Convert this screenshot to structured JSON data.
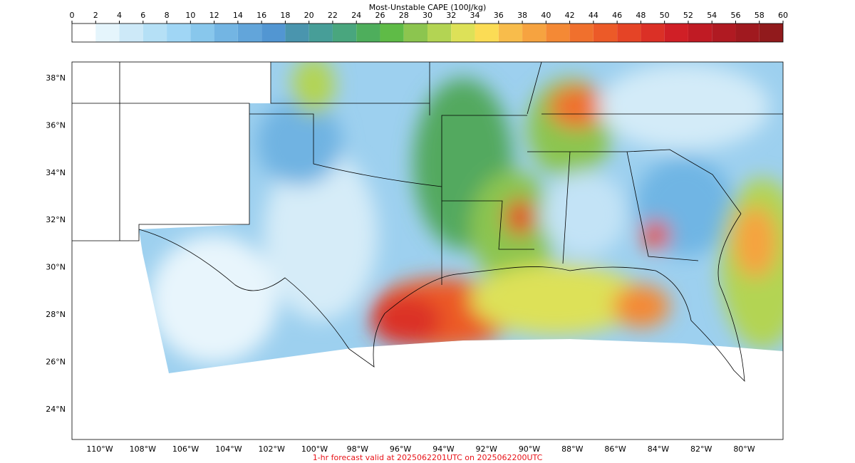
{
  "map": {
    "colorbar": {
      "title": "Most-Unstable CAPE (100J/kg)",
      "levels": [
        0,
        2,
        4,
        6,
        8,
        10,
        12,
        14,
        16,
        18,
        20,
        22,
        24,
        26,
        28,
        30,
        32,
        34,
        36,
        38,
        40,
        42,
        44,
        46,
        48,
        50,
        52,
        54,
        56,
        58,
        60
      ],
      "colors": [
        "#ffffff",
        "#e5f5fc",
        "#cde9f8",
        "#b5e0f6",
        "#a0d6f5",
        "#88c7ec",
        "#73b5e3",
        "#62a5da",
        "#5296d2",
        "#4a95ae",
        "#479e98",
        "#49a67e",
        "#4eae5c",
        "#5fbb47",
        "#8cc54f",
        "#b3d453",
        "#dde158",
        "#fbdc55",
        "#f8bc4b",
        "#f6a340",
        "#f48935",
        "#f0702d",
        "#ec5a28",
        "#e54426",
        "#db3026",
        "#d01f26",
        "#c01b24",
        "#b01a22",
        "#a0191f",
        "#911a1c"
      ]
    },
    "lat_ticks": [
      {
        "value": 38,
        "label": "38°N"
      },
      {
        "value": 36,
        "label": "36°N"
      },
      {
        "value": 34,
        "label": "34°N"
      },
      {
        "value": 32,
        "label": "32°N"
      },
      {
        "value": 30,
        "label": "30°N"
      },
      {
        "value": 28,
        "label": "28°N"
      },
      {
        "value": 26,
        "label": "26°N"
      },
      {
        "value": 24,
        "label": "24°N"
      }
    ],
    "lon_ticks": [
      {
        "value": -110,
        "label": "110°W"
      },
      {
        "value": -108,
        "label": "108°W"
      },
      {
        "value": -106,
        "label": "106°W"
      },
      {
        "value": -104,
        "label": "104°W"
      },
      {
        "value": -102,
        "label": "102°W"
      },
      {
        "value": -100,
        "label": "100°W"
      },
      {
        "value": -98,
        "label": "98°W"
      },
      {
        "value": -96,
        "label": "96°W"
      },
      {
        "value": -94,
        "label": "94°W"
      },
      {
        "value": -92,
        "label": "92°W"
      },
      {
        "value": -90,
        "label": "90°W"
      },
      {
        "value": -88,
        "label": "88°W"
      },
      {
        "value": -86,
        "label": "86°W"
      },
      {
        "value": -84,
        "label": "84°W"
      },
      {
        "value": -82,
        "label": "82°W"
      },
      {
        "value": -80,
        "label": "80°W"
      }
    ],
    "footer": "1-hr forecast valid at 2025062201UTC on 2025062200UTC"
  }
}
